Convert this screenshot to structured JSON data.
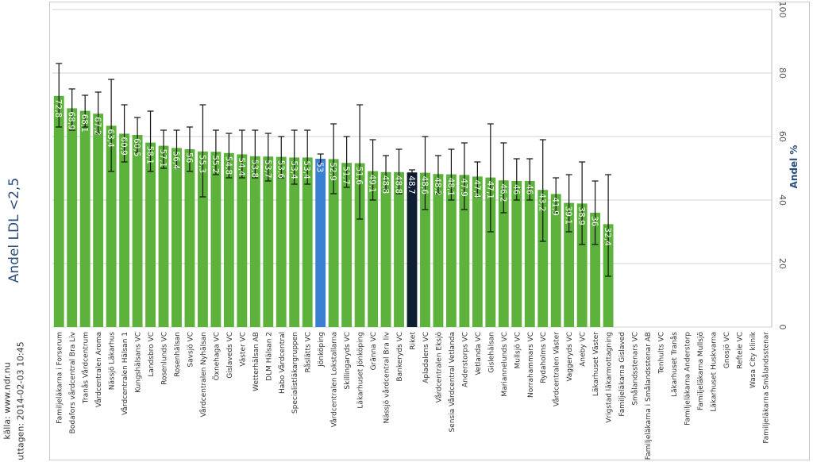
{
  "title": "Andel LDL <2,5",
  "source_line1": "källa: www.ndr.nu",
  "source_line2": "uttagen: 2014-02-03 10:45",
  "chart_data": {
    "type": "bar",
    "ylabel": "Andel %",
    "xlabel": "",
    "ylim": [
      0,
      100
    ],
    "yticks": [
      0,
      20,
      40,
      60,
      80,
      100
    ],
    "grid": true,
    "colors": {
      "default": "#5cb23a",
      "highlight": "#3a7fd1",
      "national": "#0f1f33",
      "error": "#111111",
      "grid": "#d0d0d0"
    },
    "categories": [
      "Familjeläkarna i Forserum",
      "Bodafors vårdcentral Bra Liv",
      "Tranås Vårdcentrum",
      "Vårdcentralen Aroma",
      "Nässjö Läkarhus",
      "Vårdcentralen Hälsan 1",
      "Kungshälsans VC",
      "Landsbro VC",
      "Rosenlunds VC",
      "Rosenhälsan",
      "Savsjö VC",
      "Vårdcentralen Nyhälsan",
      "Öxnehaga VC",
      "Gislaveds VC",
      "Väster VC",
      "Wetterhälsan AB",
      "DLM Hälsan 2",
      "Habo Vårdcentral",
      "Specialistläkargruppen",
      "Råslätts VC",
      "Jönköping",
      "Vårdcentralen Lokstallarna",
      "Skillingaryds VC",
      "Läkarhuset Jönköping",
      "Gränna VC",
      "Nässjö vårdcentral Bra liv",
      "Bankeryds VC",
      "Riket",
      "Apladalens VC",
      "Vårdcentralen Eksjö",
      "Sensia Vårdcentral Vetlanda",
      "Anderstorps VC",
      "Vetlanda VC",
      "Gislehälsan",
      "Mariannelunds VC",
      "Mullsjö VC",
      "Norrahammars VC",
      "Rydaholms VC",
      "Vårdcentralen Väster",
      "Vaggeryds VC",
      "Aneby VC",
      "Läkarhuset Väster",
      "Vrigstad läkarmottagning",
      "Familjeläkarna Gislaved",
      "Smålandsstenars VC",
      "Familjeläkarna i Smålandsstenar AB",
      "Tenhults VC",
      "Läkarhuset Tranås",
      "Familjeläkarna Anderstorp",
      "Familjeläkarna Mullsjö",
      "Läkarhuset Huskvarna",
      "Gnosjö VC",
      "Reftele VC",
      "Wasa City klinik",
      "Familjeläkarna Smålandsstenar"
    ],
    "values": [
      72.8,
      68.9,
      68.1,
      67.2,
      63.4,
      60.9,
      60.5,
      58.1,
      57.1,
      56.4,
      56,
      55.3,
      55.2,
      54.8,
      54.4,
      53.8,
      53.7,
      53.6,
      53.4,
      53.4,
      53,
      52.9,
      51.7,
      51.6,
      49.1,
      48.8,
      48.8,
      48.7,
      48.6,
      48.2,
      48.1,
      47.9,
      47.4,
      47.1,
      46.2,
      46,
      46,
      43.2,
      41.9,
      39.1,
      38.9,
      36,
      32.4,
      null,
      null,
      null,
      null,
      null,
      null,
      null,
      null,
      null,
      null,
      null,
      null
    ],
    "value_labels": [
      "72,8",
      "68,9",
      "68,1",
      "67,2",
      "63,4",
      "60,9",
      "60,5",
      "58,1",
      "57,1",
      "56,4",
      "56",
      "55,3",
      "55,2",
      "54,8",
      "54,4",
      "53,8",
      "53,7",
      "53,6",
      "53,4",
      "53,4",
      "53",
      "52,9",
      "51,7",
      "51,6",
      "49,1",
      "48,8",
      "48,8",
      "48,7",
      "48,6",
      "48,2",
      "48,1",
      "47,9",
      "47,4",
      "47,1",
      "46,2",
      "46",
      "46",
      "43,2",
      "41,9",
      "39,1",
      "38,9",
      "36",
      "32,4",
      "",
      "",
      "",
      "",
      "",
      "",
      "",
      "",
      "",
      "",
      "",
      ""
    ],
    "error_low": [
      63,
      62,
      63,
      61,
      49,
      52,
      55,
      49,
      50,
      50,
      49,
      41,
      48,
      47,
      47,
      47,
      46,
      47,
      45,
      45,
      51.5,
      42,
      44,
      34,
      40,
      43,
      42,
      48,
      37,
      42,
      40,
      37,
      41,
      30,
      36,
      40,
      40,
      27,
      36,
      30,
      26,
      26,
      16,
      null,
      null,
      null,
      null,
      null,
      null,
      null,
      null,
      null,
      null,
      null,
      null
    ],
    "error_high": [
      83,
      75,
      73,
      74,
      78,
      70,
      66,
      68,
      62,
      62,
      63,
      70,
      62,
      61,
      62,
      62,
      61,
      60,
      62,
      62,
      54.5,
      64,
      60,
      70,
      59,
      54,
      56,
      49.5,
      60,
      54,
      56,
      58,
      52,
      64,
      58,
      53,
      53,
      59,
      47,
      48,
      52,
      46,
      48,
      null,
      null,
      null,
      null,
      null,
      null,
      null,
      null,
      null,
      null,
      null,
      null
    ],
    "highlight_index": 20,
    "national_index": 27
  }
}
